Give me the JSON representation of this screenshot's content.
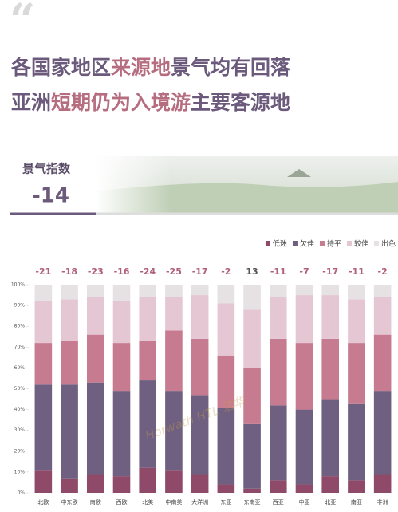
{
  "header": {
    "title_line1": [
      "各国家地区",
      "来源地",
      "景气均有回落"
    ],
    "title_line2": [
      "亚洲",
      "短期仍为入境游",
      "主要客源地"
    ],
    "index_label": "景气指数",
    "index_value": -14,
    "watermark": "Horwath HTL 浩华"
  },
  "chart_data": {
    "type": "stacked_bar",
    "categories": [
      "北欧",
      "中东欧",
      "南欧",
      "西欧",
      "北美",
      "中南美",
      "大洋洲",
      "东亚",
      "东南亚",
      "西亚",
      "中亚",
      "北亚",
      "南亚",
      "非洲"
    ],
    "index": [
      -21,
      -18,
      -23,
      -16,
      -24,
      -25,
      -17,
      -2,
      13,
      -11,
      -7,
      -17,
      -11,
      -2
    ],
    "series": [
      {
        "name": "低迷",
        "color": "#8e4a68",
        "values": [
          11,
          7,
          9,
          8,
          12,
          11,
          9,
          4,
          2,
          6,
          4,
          8,
          6,
          9
        ]
      },
      {
        "name": "欠佳",
        "color": "#6f5f80",
        "values": [
          41,
          45,
          44,
          41,
          42,
          38,
          38,
          37,
          31,
          36,
          36,
          37,
          37,
          40
        ]
      },
      {
        "name": "持平",
        "color": "#c77b90",
        "values": [
          20,
          21,
          23,
          23,
          19,
          29,
          27,
          25,
          27,
          32,
          32,
          29,
          29,
          27
        ]
      },
      {
        "name": "较佳",
        "color": "#e5c7d4",
        "values": [
          20,
          20,
          18,
          20,
          21,
          16,
          21,
          25,
          28,
          20,
          23,
          21,
          21,
          18
        ]
      },
      {
        "name": "出色",
        "color": "#e6e1e3",
        "values": [
          8,
          7,
          6,
          8,
          6,
          6,
          5,
          9,
          12,
          6,
          5,
          5,
          7,
          6
        ]
      }
    ],
    "ylim": [
      0,
      100
    ],
    "yticks": [
      {
        "value": 0,
        "label": "0%"
      },
      {
        "value": 10,
        "label": "10%"
      },
      {
        "value": 20,
        "label": "20%"
      },
      {
        "value": 30,
        "label": "30%"
      },
      {
        "value": 40,
        "label": "40%"
      },
      {
        "value": 50,
        "label": "50%"
      },
      {
        "value": 60,
        "label": "60%"
      },
      {
        "value": 70,
        "label": "70%"
      },
      {
        "value": 80,
        "label": "80%"
      },
      {
        "value": 90,
        "label": "90%"
      },
      {
        "value": 100,
        "label": "100%"
      }
    ],
    "legend": "top-right"
  }
}
